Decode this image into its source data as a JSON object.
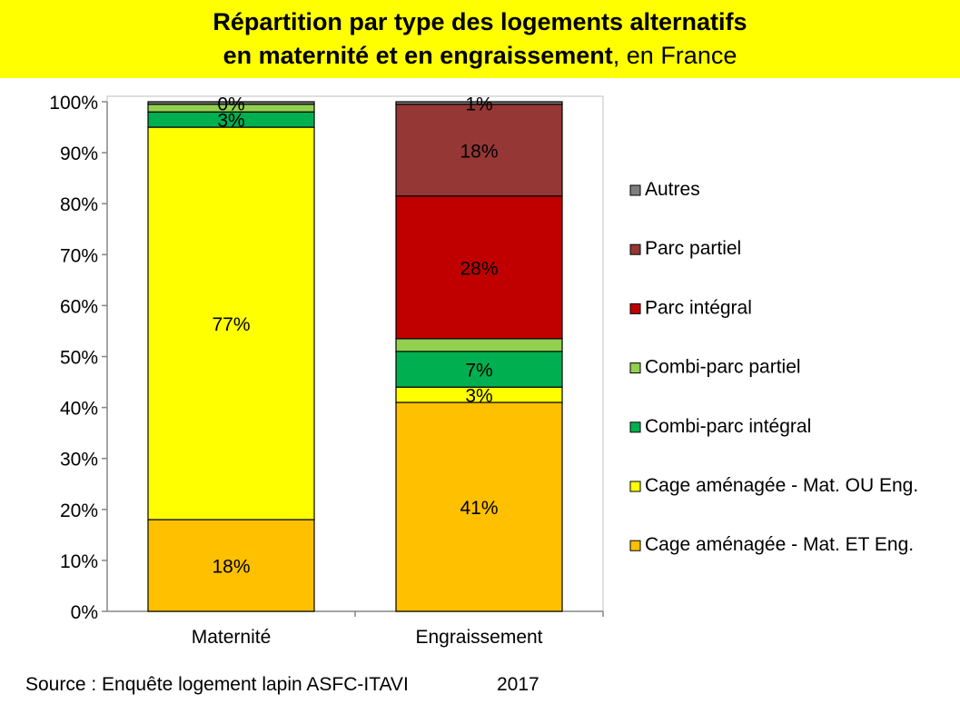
{
  "title": {
    "line1": "Répartition par type des logements alternatifs",
    "line2_bold": "en maternité et en engraissement",
    "line2_rest": ", en France"
  },
  "source": "Source : Enquête logement lapin ASFC-ITAVI",
  "year": "2017",
  "chart_data": {
    "type": "bar",
    "stacked": true,
    "percent": true,
    "categories": [
      "Maternité",
      "Engraissement"
    ],
    "ylim": [
      0,
      100
    ],
    "yticks": [
      0,
      10,
      20,
      30,
      40,
      50,
      60,
      70,
      80,
      90,
      100
    ],
    "ytick_labels": [
      "0%",
      "10%",
      "20%",
      "30%",
      "40%",
      "50%",
      "60%",
      "70%",
      "80%",
      "90%",
      "100%"
    ],
    "grid": false,
    "legend": "right",
    "series": [
      {
        "name": "Cage aménagée - Mat. ET Eng.",
        "color": "#ffc000",
        "values": [
          18,
          41
        ],
        "labels": [
          "18%",
          "41%"
        ]
      },
      {
        "name": "Cage aménagée - Mat. OU Eng.",
        "color": "#ffff00",
        "values": [
          77,
          3
        ],
        "labels": [
          "77%",
          "3%"
        ]
      },
      {
        "name": "Combi-parc intégral",
        "color": "#00b050",
        "values": [
          3,
          7
        ],
        "labels": [
          "3%",
          "7%"
        ]
      },
      {
        "name": "Combi-parc partiel",
        "color": "#92d050",
        "values": [
          1.5,
          2.5
        ],
        "labels": [
          "",
          ""
        ]
      },
      {
        "name": "Parc intégral",
        "color": "#c00000",
        "values": [
          0,
          28
        ],
        "labels": [
          "",
          "28%"
        ]
      },
      {
        "name": "Parc partiel",
        "color": "#953735",
        "values": [
          0,
          18
        ],
        "labels": [
          "",
          "18%"
        ]
      },
      {
        "name": "Autres",
        "color": "#7f7f7f",
        "values": [
          0.5,
          0.5
        ],
        "labels": [
          "0%",
          "1%"
        ]
      }
    ]
  }
}
